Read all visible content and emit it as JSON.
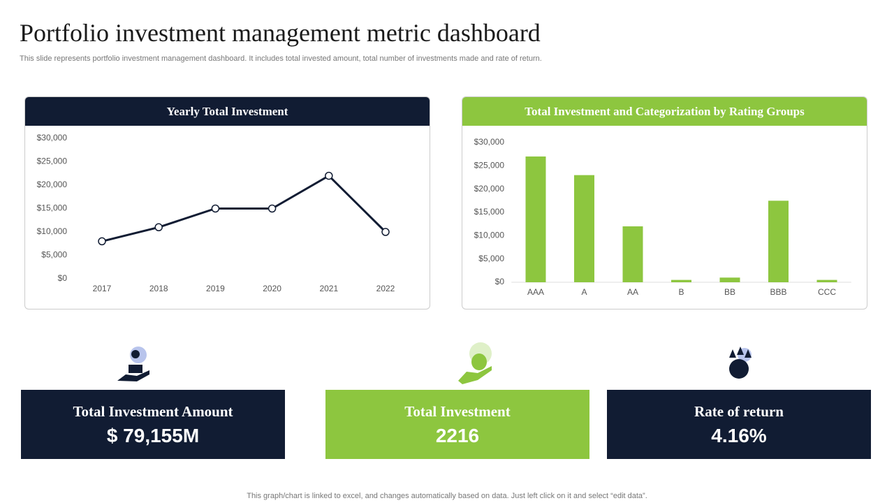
{
  "title": "Portfolio investment management metric dashboard",
  "subtitle": "This slide represents portfolio investment management dashboard. It includes total invested amount, total number of investments made and rate of return.",
  "chart_data": [
    {
      "type": "line",
      "title": "Yearly Total Investment",
      "categories": [
        "2017",
        "2018",
        "2019",
        "2020",
        "2021",
        "2022"
      ],
      "values": [
        8000,
        11000,
        15000,
        15000,
        22000,
        10000
      ],
      "color": "#111c33",
      "ylim": [
        0,
        30000
      ],
      "yticks": [
        {
          "value": 0,
          "label": "$0"
        },
        {
          "value": 5000,
          "label": "$5,000"
        },
        {
          "value": 10000,
          "label": "$10,000"
        },
        {
          "value": 15000,
          "label": "$15,000"
        },
        {
          "value": 20000,
          "label": "$20,000"
        },
        {
          "value": 25000,
          "label": "$25,000"
        },
        {
          "value": 30000,
          "label": "$30,000"
        }
      ]
    },
    {
      "type": "bar",
      "title": "Total Investment and Categorization by Rating Groups",
      "categories": [
        "AAA",
        "A",
        "AA",
        "B",
        "BB",
        "BBB",
        "CCC"
      ],
      "values": [
        27000,
        23000,
        12000,
        500,
        1000,
        17500,
        500
      ],
      "color": "#8dc63f",
      "ylim": [
        0,
        30000
      ],
      "yticks": [
        {
          "value": 0,
          "label": "$0"
        },
        {
          "value": 5000,
          "label": "$5,000"
        },
        {
          "value": 10000,
          "label": "$10,000"
        },
        {
          "value": 15000,
          "label": "$15,000"
        },
        {
          "value": 20000,
          "label": "$20,000"
        },
        {
          "value": 25000,
          "label": "$25,000"
        },
        {
          "value": 30000,
          "label": "$30,000"
        }
      ]
    }
  ],
  "kpis": [
    {
      "label": "Total Investment Amount",
      "value": "$ 79,155M"
    },
    {
      "label": "Total Investment",
      "value": "2216"
    },
    {
      "label": "Rate of return",
      "value": "4.16%"
    }
  ],
  "footer": "This graph/chart is linked to excel, and changes automatically based on data. Just left click on it and select “edit data”."
}
